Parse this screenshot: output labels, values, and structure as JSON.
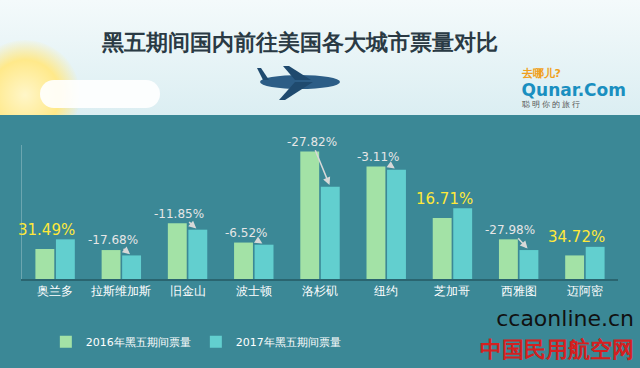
{
  "title": "黑五期间国内前往美国各大城市票量对比",
  "chart_data": {
    "type": "bar",
    "title": "黑五期间国内前往美国各大城市票量对比",
    "categories": [
      "奥兰多",
      "拉斯维加斯",
      "旧金山",
      "波士顿",
      "洛杉矶",
      "纽约",
      "芝加哥",
      "西雅图",
      "迈阿密"
    ],
    "series": [
      {
        "name": "2016年黑五期间票量",
        "color": "#a3e2a6",
        "values": [
          28,
          27,
          52,
          34,
          119,
          105,
          57,
          37,
          22
        ]
      },
      {
        "name": "2017年黑五期间票量",
        "color": "#62cfcf",
        "values": [
          37,
          22,
          46,
          32,
          86,
          102,
          66,
          27,
          30
        ]
      }
    ],
    "changes": [
      31.49,
      -17.68,
      -11.85,
      -6.52,
      -27.82,
      -3.11,
      16.71,
      -27.98,
      34.72
    ],
    "change_labels": [
      "31.49%",
      "-17.68%",
      "-11.85%",
      "-6.52%",
      "-27.82%",
      "-3.11%",
      "16.71%",
      "-27.98%",
      "34.72%"
    ],
    "ylim": [
      0,
      125
    ],
    "grid": false,
    "legend": "bottom",
    "tick_labels": "x"
  },
  "logo": {
    "text": "去哪儿?",
    "brand": "Qunar.Com",
    "slogan": "聪明你的旅行"
  },
  "watermark": {
    "site": "ccaonline.cn",
    "name": "中国民用航空网"
  }
}
